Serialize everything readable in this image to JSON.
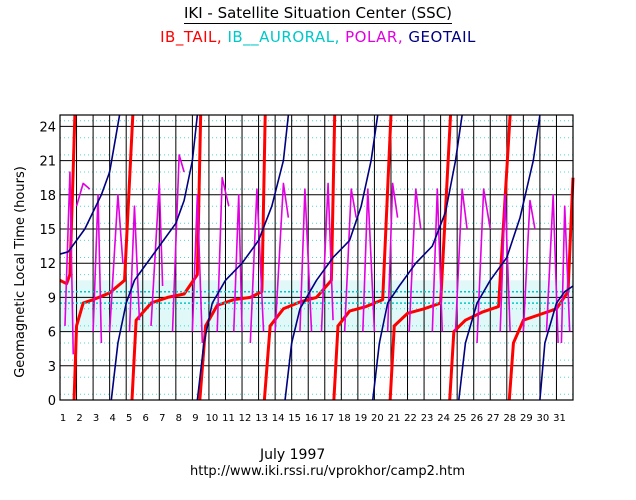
{
  "header": {
    "title": "IKI - Satellite Situation Center (SSC)"
  },
  "footer": {
    "date": "July    1997",
    "url": "http://www.iki.rssi.ru/vprokhor/camp2.htm"
  },
  "chart_data": {
    "type": "line",
    "title": "IKI - Satellite Situation Center (SSC)",
    "xlabel": "July    1997",
    "ylabel": "Geomagnetic Local Time (hours)",
    "xlim": [
      1,
      32
    ],
    "ylim": [
      0,
      25
    ],
    "x_ticks": [
      1,
      2,
      3,
      4,
      5,
      6,
      7,
      8,
      9,
      10,
      11,
      12,
      13,
      14,
      15,
      16,
      17,
      18,
      19,
      20,
      21,
      22,
      23,
      24,
      25,
      26,
      27,
      28,
      29,
      30,
      31
    ],
    "y_ticks": [
      0,
      3,
      6,
      9,
      12,
      15,
      18,
      21,
      24
    ],
    "grid": true,
    "series": [
      {
        "name": "IB_TAIL",
        "color": "#ff0000",
        "segments": [
          [
            [
              1.0,
              10.5
            ],
            [
              1.4,
              10.2
            ],
            [
              1.6,
              11.0
            ],
            [
              1.9,
              25
            ]
          ],
          [
            [
              1.85,
              0
            ],
            [
              2.0,
              6.5
            ],
            [
              2.4,
              8.5
            ],
            [
              3.0,
              8.8
            ],
            [
              4.0,
              9.4
            ],
            [
              4.9,
              10.5
            ],
            [
              5.4,
              25
            ]
          ],
          [
            [
              5.35,
              0
            ],
            [
              5.6,
              7.0
            ],
            [
              6.5,
              8.5
            ],
            [
              7.5,
              9.0
            ],
            [
              8.5,
              9.3
            ],
            [
              9.3,
              11.0
            ],
            [
              9.5,
              25
            ]
          ],
          [
            [
              9.45,
              0
            ],
            [
              9.8,
              6.5
            ],
            [
              10.5,
              8.3
            ],
            [
              11.5,
              8.8
            ],
            [
              12.5,
              9.0
            ],
            [
              13.2,
              9.5
            ],
            [
              13.4,
              25
            ]
          ],
          [
            [
              13.35,
              0
            ],
            [
              13.7,
              6.5
            ],
            [
              14.5,
              8.0
            ],
            [
              15.5,
              8.6
            ],
            [
              16.5,
              9.0
            ],
            [
              17.4,
              10.5
            ],
            [
              17.6,
              25
            ]
          ],
          [
            [
              17.55,
              0
            ],
            [
              17.8,
              6.5
            ],
            [
              18.5,
              7.8
            ],
            [
              19.5,
              8.2
            ],
            [
              20.5,
              8.8
            ],
            [
              21.0,
              25
            ]
          ],
          [
            [
              20.95,
              0
            ],
            [
              21.2,
              6.5
            ],
            [
              22.0,
              7.6
            ],
            [
              23.0,
              8.0
            ],
            [
              24.0,
              8.5
            ],
            [
              24.6,
              25
            ]
          ],
          [
            [
              24.55,
              0
            ],
            [
              24.8,
              6.0
            ],
            [
              25.5,
              7.0
            ],
            [
              26.5,
              7.7
            ],
            [
              27.5,
              8.2
            ],
            [
              28.2,
              25
            ]
          ],
          [
            [
              28.15,
              0
            ],
            [
              28.4,
              5.0
            ],
            [
              29.0,
              7.0
            ],
            [
              30.0,
              7.5
            ],
            [
              31.0,
              8.0
            ],
            [
              31.7,
              9.5
            ],
            [
              32,
              19.5
            ]
          ]
        ]
      },
      {
        "name": "IB__AURORAL",
        "color": "#00c8c8",
        "segments": [
          [
            [
              1.0,
              8.5
            ],
            [
              32,
              8.5
            ]
          ],
          [
            [
              1.0,
              9.5
            ],
            [
              32,
              9.5
            ]
          ]
        ]
      },
      {
        "name": "POLAR",
        "color": "#e000e0",
        "segments": [
          [
            [
              1.3,
              6.5
            ],
            [
              1.6,
              20.0
            ],
            [
              1.8,
              4.0
            ]
          ],
          [
            [
              2.0,
              17.0
            ],
            [
              2.4,
              19.0
            ],
            [
              2.8,
              18.5
            ]
          ],
          [
            [
              3.0,
              6.0
            ],
            [
              3.3,
              18.0
            ],
            [
              3.5,
              5.0
            ]
          ],
          [
            [
              4.0,
              6.0
            ],
            [
              4.5,
              18.0
            ],
            [
              4.8,
              12.0
            ]
          ],
          [
            [
              5.2,
              6.0
            ],
            [
              5.5,
              17.0
            ],
            [
              5.8,
              7.0
            ]
          ],
          [
            [
              6.5,
              6.5
            ],
            [
              7.0,
              19.0
            ],
            [
              7.2,
              10.0
            ]
          ],
          [
            [
              7.8,
              6.0
            ],
            [
              8.2,
              21.5
            ],
            [
              8.5,
              20.0
            ]
          ],
          [
            [
              9.0,
              6.0
            ],
            [
              9.3,
              18.0
            ],
            [
              9.6,
              5.0
            ]
          ],
          [
            [
              10.5,
              6.0
            ],
            [
              10.8,
              19.5
            ],
            [
              11.2,
              17.0
            ]
          ],
          [
            [
              11.5,
              6.0
            ],
            [
              11.8,
              18.0
            ],
            [
              12.0,
              6.0
            ]
          ],
          [
            [
              12.5,
              5.0
            ],
            [
              12.9,
              18.5
            ],
            [
              13.3,
              6.0
            ]
          ],
          [
            [
              14.0,
              6.0
            ],
            [
              14.5,
              19.0
            ],
            [
              14.8,
              16.0
            ]
          ],
          [
            [
              15.5,
              6.0
            ],
            [
              15.8,
              18.5
            ],
            [
              16.2,
              6.0
            ]
          ],
          [
            [
              16.8,
              6.0
            ],
            [
              17.2,
              19.0
            ],
            [
              17.5,
              7.0
            ]
          ],
          [
            [
              18.2,
              6.0
            ],
            [
              18.6,
              18.5
            ],
            [
              18.9,
              16.0
            ]
          ],
          [
            [
              19.3,
              6.0
            ],
            [
              19.6,
              18.5
            ],
            [
              20.0,
              6.0
            ]
          ],
          [
            [
              20.8,
              6.0
            ],
            [
              21.1,
              19.0
            ],
            [
              21.4,
              16.0
            ]
          ],
          [
            [
              22.1,
              6.0
            ],
            [
              22.5,
              18.5
            ],
            [
              22.8,
              15.0
            ]
          ],
          [
            [
              23.5,
              6.0
            ],
            [
              23.8,
              18.5
            ],
            [
              24.1,
              6.0
            ]
          ],
          [
            [
              24.9,
              6.0
            ],
            [
              25.3,
              18.5
            ],
            [
              25.6,
              15.0
            ]
          ],
          [
            [
              26.2,
              5.0
            ],
            [
              26.6,
              18.5
            ],
            [
              27.0,
              15.0
            ]
          ],
          [
            [
              27.6,
              6.0
            ],
            [
              27.9,
              18.0
            ],
            [
              28.2,
              6.0
            ]
          ],
          [
            [
              29.0,
              6.0
            ],
            [
              29.4,
              17.5
            ],
            [
              29.7,
              15.0
            ]
          ],
          [
            [
              30.4,
              6.0
            ],
            [
              30.8,
              18.0
            ],
            [
              31.1,
              5.0
            ]
          ],
          [
            [
              31.3,
              5.0
            ],
            [
              31.5,
              17.0
            ],
            [
              31.8,
              6.0
            ]
          ]
        ]
      },
      {
        "name": "GEOTAIL",
        "color": "#000080",
        "segments": [
          [
            [
              1.0,
              12.8
            ],
            [
              1.5,
              13.0
            ],
            [
              2.0,
              14.0
            ],
            [
              2.5,
              15.0
            ],
            [
              3.0,
              16.5
            ],
            [
              3.5,
              18.0
            ],
            [
              4.0,
              20.0
            ],
            [
              4.6,
              25
            ]
          ],
          [
            [
              4.1,
              0
            ],
            [
              4.5,
              5.0
            ],
            [
              5.0,
              8.5
            ],
            [
              5.5,
              10.5
            ],
            [
              6.0,
              11.5
            ],
            [
              7.0,
              13.5
            ],
            [
              8.0,
              15.5
            ],
            [
              8.5,
              17.5
            ],
            [
              9.0,
              21.0
            ],
            [
              9.3,
              25
            ]
          ],
          [
            [
              9.3,
              0
            ],
            [
              9.7,
              5.0
            ],
            [
              10.2,
              8.5
            ],
            [
              11.0,
              10.5
            ],
            [
              12.0,
              12.0
            ],
            [
              13.0,
              14.0
            ],
            [
              13.8,
              17.0
            ],
            [
              14.5,
              21.0
            ],
            [
              14.8,
              25
            ]
          ],
          [
            [
              14.6,
              0
            ],
            [
              15.0,
              5.0
            ],
            [
              15.5,
              8.0
            ],
            [
              16.5,
              10.5
            ],
            [
              17.5,
              12.5
            ],
            [
              18.5,
              14.0
            ],
            [
              19.2,
              17.0
            ],
            [
              19.8,
              21.0
            ],
            [
              20.2,
              25
            ]
          ],
          [
            [
              19.9,
              0
            ],
            [
              20.3,
              5.0
            ],
            [
              20.8,
              8.5
            ],
            [
              21.5,
              10.0
            ],
            [
              22.5,
              12.0
            ],
            [
              23.5,
              13.5
            ],
            [
              24.3,
              16.5
            ],
            [
              24.9,
              21.0
            ],
            [
              25.3,
              25
            ]
          ],
          [
            [
              25.1,
              0
            ],
            [
              25.5,
              5.0
            ],
            [
              26.2,
              8.5
            ],
            [
              27.0,
              10.5
            ],
            [
              28.0,
              12.5
            ],
            [
              28.8,
              16.0
            ],
            [
              29.6,
              21.0
            ],
            [
              30.0,
              25
            ]
          ],
          [
            [
              30.0,
              0
            ],
            [
              30.3,
              5.0
            ],
            [
              31.0,
              8.5
            ],
            [
              31.5,
              9.5
            ],
            [
              32.0,
              10.0
            ]
          ]
        ]
      }
    ]
  }
}
